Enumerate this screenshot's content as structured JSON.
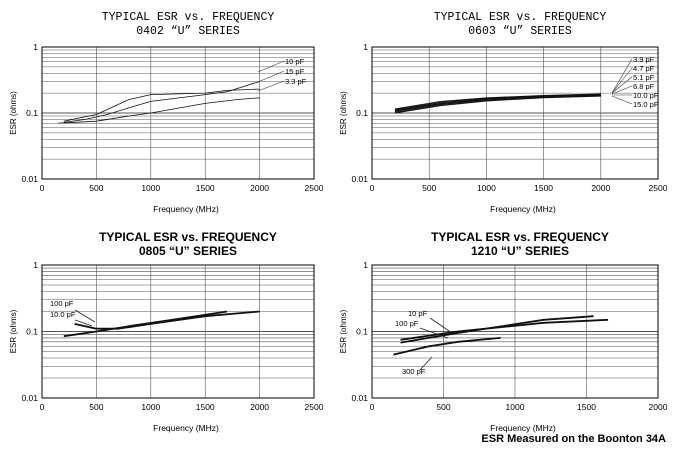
{
  "footer_note": "ESR Measured on the Boonton 34A",
  "chart_data": [
    {
      "type": "line",
      "title": "TYPICAL ESR vs. FREQUENCY",
      "subtitle": "0402 “U” SERIES",
      "title_style": "mono",
      "xlabel": "Frequency (MHz)",
      "ylabel": "ESR (ohms)",
      "xlim": [
        0,
        2500
      ],
      "ylim": [
        0.01,
        1
      ],
      "yscale": "log",
      "xticks": [
        0,
        500,
        1000,
        1500,
        2000,
        2500
      ],
      "yticks": [
        {
          "value": 1,
          "label": "1"
        },
        {
          "value": 0.1,
          "label": "0.1"
        },
        {
          "value": 0.01,
          "label": "0.01"
        }
      ],
      "series": [
        {
          "name": "10 pF",
          "x": [
            200,
            400,
            600,
            800,
            1000,
            1500,
            1700,
            2000
          ],
          "y": [
            0.072,
            0.08,
            0.095,
            0.12,
            0.15,
            0.19,
            0.21,
            0.3
          ]
        },
        {
          "name": "15 pF",
          "x": [
            200,
            500,
            800,
            1000,
            1500,
            1700,
            2000
          ],
          "y": [
            0.075,
            0.095,
            0.16,
            0.19,
            0.2,
            0.22,
            0.23
          ]
        },
        {
          "name": "3.3 pF",
          "x": [
            150,
            500,
            800,
            1000,
            1500,
            1800,
            2000
          ],
          "y": [
            0.07,
            0.075,
            0.09,
            0.1,
            0.14,
            0.16,
            0.17
          ]
        }
      ]
    },
    {
      "type": "line",
      "title": "TYPICAL ESR vs. FREQUENCY",
      "subtitle": "0603 “U” SERIES",
      "title_style": "mono",
      "xlabel": "Frequency (MHz)",
      "ylabel": "ESR (ohms)",
      "xlim": [
        0,
        2500
      ],
      "ylim": [
        0.01,
        1
      ],
      "yscale": "log",
      "xticks": [
        0,
        500,
        1000,
        1500,
        2000,
        2500
      ],
      "yticks": [
        {
          "value": 1,
          "label": "1"
        },
        {
          "value": 0.1,
          "label": "0.1"
        },
        {
          "value": 0.01,
          "label": "0.01"
        }
      ],
      "series": [
        {
          "name": "3.9 pF",
          "x": [
            200,
            600,
            1000,
            1500,
            2000
          ],
          "y": [
            0.115,
            0.15,
            0.17,
            0.185,
            0.195
          ]
        },
        {
          "name": "4.7 pF",
          "x": [
            200,
            600,
            1000,
            1500,
            2000
          ],
          "y": [
            0.112,
            0.145,
            0.167,
            0.182,
            0.192
          ]
        },
        {
          "name": "5.1 pF",
          "x": [
            200,
            600,
            1000,
            1500,
            2000
          ],
          "y": [
            0.109,
            0.141,
            0.163,
            0.179,
            0.189
          ]
        },
        {
          "name": "6.8 pF",
          "x": [
            200,
            600,
            1000,
            1500,
            2000
          ],
          "y": [
            0.106,
            0.137,
            0.16,
            0.176,
            0.186
          ]
        },
        {
          "name": "10.0 pF",
          "x": [
            200,
            600,
            1000,
            1500,
            2000
          ],
          "y": [
            0.103,
            0.133,
            0.156,
            0.173,
            0.183
          ]
        },
        {
          "name": "15.0 pF",
          "x": [
            200,
            600,
            1000,
            1500,
            2000
          ],
          "y": [
            0.1,
            0.129,
            0.152,
            0.17,
            0.18
          ]
        }
      ]
    },
    {
      "type": "line",
      "title": "TYPICAL ESR vs. FREQUENCY",
      "subtitle": "0805 “U” SERIES",
      "title_style": "bold",
      "xlabel": "Frequency (MHz)",
      "ylabel": "ESR (ohms)",
      "xlim": [
        0,
        2500
      ],
      "ylim": [
        0.01,
        1
      ],
      "yscale": "log",
      "xticks": [
        0,
        500,
        1000,
        1500,
        2000,
        2500
      ],
      "yticks": [
        {
          "value": 1,
          "label": "1"
        },
        {
          "value": 0.1,
          "label": "0.1"
        },
        {
          "value": 0.01,
          "label": "0.01"
        }
      ],
      "series": [
        {
          "name": "100 pF",
          "x": [
            200,
            500,
            800,
            1200,
            1700
          ],
          "y": [
            0.085,
            0.1,
            0.12,
            0.15,
            0.2
          ]
        },
        {
          "name": "10.0 pF",
          "x": [
            300,
            500,
            700,
            1000,
            1500,
            2000
          ],
          "y": [
            0.13,
            0.11,
            0.11,
            0.13,
            0.17,
            0.2
          ]
        }
      ]
    },
    {
      "type": "line",
      "title": "TYPICAL ESR vs. FREQUENCY",
      "subtitle": "1210 “U” SERIES",
      "title_style": "bold",
      "xlabel": "Frequency (MHz)",
      "ylabel": "ESR (ohms)",
      "xlim": [
        0,
        2000
      ],
      "ylim": [
        0.01,
        1
      ],
      "yscale": "log",
      "xticks": [
        0,
        500,
        1000,
        1500,
        2000
      ],
      "yticks": [
        {
          "value": 1,
          "label": "1"
        },
        {
          "value": 0.1,
          "label": "0.1"
        },
        {
          "value": 0.01,
          "label": "0.01"
        }
      ],
      "series": [
        {
          "name": "10 pF",
          "x": [
            200,
            600,
            1200,
            1650
          ],
          "y": [
            0.075,
            0.1,
            0.135,
            0.15
          ]
        },
        {
          "name": "100 pF",
          "x": [
            200,
            600,
            1200,
            1550
          ],
          "y": [
            0.068,
            0.095,
            0.15,
            0.17
          ]
        },
        {
          "name": "300 pF",
          "x": [
            150,
            400,
            600,
            900
          ],
          "y": [
            0.045,
            0.06,
            0.07,
            0.08
          ]
        }
      ]
    }
  ]
}
